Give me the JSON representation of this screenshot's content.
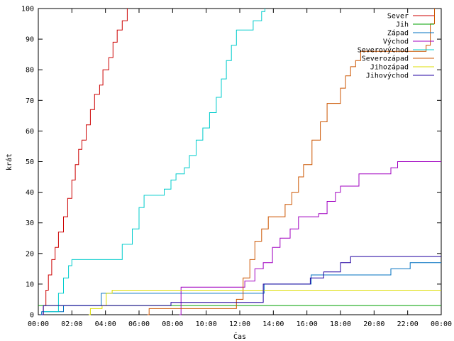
{
  "chart_data": {
    "type": "line",
    "title": "",
    "xlabel": "Čas",
    "ylabel": "krát",
    "xlim": [
      0,
      24
    ],
    "ylim": [
      0,
      100
    ],
    "x_ticks": [
      {
        "value": 0,
        "label": "00:00"
      },
      {
        "value": 2,
        "label": "02:00"
      },
      {
        "value": 4,
        "label": "04:00"
      },
      {
        "value": 6,
        "label": "06:00"
      },
      {
        "value": 8,
        "label": "08:00"
      },
      {
        "value": 10,
        "label": "10:00"
      },
      {
        "value": 12,
        "label": "12:00"
      },
      {
        "value": 14,
        "label": "14:00"
      },
      {
        "value": 16,
        "label": "16:00"
      },
      {
        "value": 18,
        "label": "18:00"
      },
      {
        "value": 20,
        "label": "20:00"
      },
      {
        "value": 22,
        "label": "22:00"
      },
      {
        "value": 24,
        "label": "00:00"
      }
    ],
    "y_ticks": [
      0,
      10,
      20,
      30,
      40,
      50,
      60,
      70,
      80,
      90,
      100
    ],
    "grid": false,
    "legend_position": "top-right",
    "series": [
      {
        "name": "Sever",
        "color": "#cc0000",
        "step": true,
        "points": [
          [
            0.2,
            0
          ],
          [
            0.3,
            3
          ],
          [
            0.45,
            8
          ],
          [
            0.6,
            13
          ],
          [
            0.8,
            18
          ],
          [
            1.0,
            22
          ],
          [
            1.2,
            27
          ],
          [
            1.5,
            32
          ],
          [
            1.75,
            38
          ],
          [
            2.0,
            44
          ],
          [
            2.2,
            49
          ],
          [
            2.4,
            54
          ],
          [
            2.6,
            57
          ],
          [
            2.85,
            62
          ],
          [
            3.1,
            67
          ],
          [
            3.35,
            72
          ],
          [
            3.65,
            75
          ],
          [
            3.85,
            80
          ],
          [
            4.2,
            84
          ],
          [
            4.45,
            89
          ],
          [
            4.7,
            93
          ],
          [
            5.0,
            96
          ],
          [
            5.3,
            100
          ]
        ]
      },
      {
        "name": "Jih",
        "color": "#00a000",
        "step": true,
        "points": [
          [
            0,
            3
          ],
          [
            24,
            3
          ]
        ]
      },
      {
        "name": "Západ",
        "color": "#0070c0",
        "step": true,
        "points": [
          [
            0.15,
            0
          ],
          [
            0.2,
            1
          ],
          [
            1.5,
            3
          ],
          [
            3.1,
            3
          ],
          [
            3.75,
            7
          ],
          [
            13.3,
            7
          ],
          [
            13.45,
            10
          ],
          [
            16.1,
            10
          ],
          [
            16.25,
            13
          ],
          [
            20.9,
            13
          ],
          [
            21.0,
            15
          ],
          [
            22.15,
            17
          ],
          [
            24,
            17
          ]
        ]
      },
      {
        "name": "Východ",
        "color": "#a000c0",
        "step": true,
        "points": [
          [
            8.4,
            0
          ],
          [
            8.5,
            9
          ],
          [
            12.2,
            9
          ],
          [
            12.3,
            11
          ],
          [
            12.9,
            15
          ],
          [
            13.4,
            17
          ],
          [
            13.95,
            22
          ],
          [
            14.4,
            25
          ],
          [
            15.0,
            28
          ],
          [
            15.5,
            32
          ],
          [
            16.7,
            33
          ],
          [
            17.2,
            37
          ],
          [
            17.7,
            40
          ],
          [
            18.0,
            42
          ],
          [
            19.1,
            46
          ],
          [
            21.0,
            48
          ],
          [
            21.4,
            50
          ],
          [
            24,
            50
          ]
        ]
      },
      {
        "name": "Severovýchod",
        "color": "#00cccc",
        "step": true,
        "points": [
          [
            0.3,
            1
          ],
          [
            1.0,
            1
          ],
          [
            1.2,
            7
          ],
          [
            1.5,
            12
          ],
          [
            1.8,
            16
          ],
          [
            2.0,
            18
          ],
          [
            4.8,
            18
          ],
          [
            5.0,
            23
          ],
          [
            5.6,
            28
          ],
          [
            6.0,
            35
          ],
          [
            6.3,
            39
          ],
          [
            7.2,
            39
          ],
          [
            7.5,
            41
          ],
          [
            7.9,
            44
          ],
          [
            8.2,
            46
          ],
          [
            8.7,
            48
          ],
          [
            9.0,
            52
          ],
          [
            9.4,
            57
          ],
          [
            9.8,
            61
          ],
          [
            10.2,
            66
          ],
          [
            10.6,
            71
          ],
          [
            10.9,
            77
          ],
          [
            11.2,
            83
          ],
          [
            11.5,
            88
          ],
          [
            11.8,
            93
          ],
          [
            12.5,
            93
          ],
          [
            12.8,
            96
          ],
          [
            13.3,
            99
          ],
          [
            13.5,
            100
          ]
        ]
      },
      {
        "name": "Severozápad",
        "color": "#cc5500",
        "step": true,
        "points": [
          [
            6.5,
            0
          ],
          [
            6.6,
            2
          ],
          [
            11.6,
            2
          ],
          [
            11.8,
            5
          ],
          [
            12.2,
            12
          ],
          [
            12.6,
            18
          ],
          [
            12.9,
            24
          ],
          [
            13.3,
            28
          ],
          [
            13.7,
            32
          ],
          [
            14.3,
            32
          ],
          [
            14.7,
            36
          ],
          [
            15.1,
            40
          ],
          [
            15.5,
            45
          ],
          [
            15.8,
            49
          ],
          [
            16.3,
            57
          ],
          [
            16.8,
            63
          ],
          [
            17.2,
            69
          ],
          [
            17.7,
            69
          ],
          [
            18.0,
            74
          ],
          [
            18.3,
            78
          ],
          [
            18.6,
            81
          ],
          [
            18.9,
            83
          ],
          [
            19.2,
            86
          ],
          [
            23.0,
            86
          ],
          [
            23.1,
            88
          ],
          [
            23.35,
            95
          ],
          [
            23.6,
            100
          ]
        ]
      },
      {
        "name": "Jihozápad",
        "color": "#dddd00",
        "step": true,
        "points": [
          [
            3.0,
            0
          ],
          [
            3.1,
            2
          ],
          [
            3.8,
            3
          ],
          [
            4.05,
            7
          ],
          [
            4.4,
            8
          ],
          [
            24,
            8
          ]
        ]
      },
      {
        "name": "Jihovýchod",
        "color": "#2000a0",
        "step": true,
        "points": [
          [
            0.2,
            0
          ],
          [
            0.3,
            3
          ],
          [
            1.5,
            3
          ],
          [
            7.7,
            3
          ],
          [
            7.9,
            4
          ],
          [
            13.2,
            4
          ],
          [
            13.4,
            10
          ],
          [
            16.0,
            10
          ],
          [
            16.2,
            12
          ],
          [
            17.0,
            14
          ],
          [
            18.0,
            17
          ],
          [
            18.6,
            19
          ],
          [
            24,
            19
          ]
        ]
      }
    ]
  }
}
